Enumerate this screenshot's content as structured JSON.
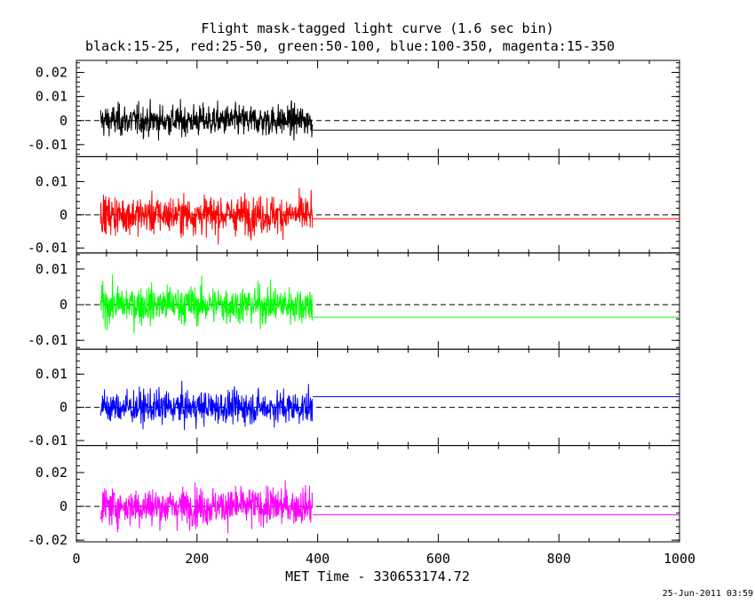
{
  "chart_data": {
    "type": "line",
    "title": "Flight mask-tagged light curve (1.6 sec bin)",
    "subtitle": "black:15-25, red:25-50, green:50-100, blue:100-350, magenta:15-350",
    "xlabel": "MET Time - 330653174.72",
    "xlim": [
      0,
      1000
    ],
    "xticks": [
      0,
      200,
      400,
      600,
      800,
      1000
    ],
    "data_x_range": [
      40,
      392
    ],
    "bin_seconds": 1.6,
    "panels": [
      {
        "name": "15-25",
        "color": "#000000",
        "ylim": [
          -0.015,
          0.025
        ],
        "yticks": [
          -0.01,
          0,
          0.01,
          0.02
        ],
        "ytick_labels": [
          "-0.01",
          "0",
          "0.01",
          "0.02"
        ],
        "noise_sigma": 0.0055,
        "mean": -0.004
      },
      {
        "name": "25-50",
        "color": "#ff0000",
        "ylim": [
          -0.0115,
          0.0175
        ],
        "yticks": [
          -0.01,
          0,
          0.01
        ],
        "ytick_labels": [
          "-0.01",
          "0",
          "0.01"
        ],
        "noise_sigma": 0.0048,
        "mean": -0.0012
      },
      {
        "name": "50-100",
        "color": "#00ff00",
        "ylim": [
          -0.0125,
          0.0145
        ],
        "yticks": [
          -0.01,
          0,
          0.01
        ],
        "ytick_labels": [
          "-0.01",
          "0",
          "0.01"
        ],
        "noise_sigma": 0.0045,
        "mean": -0.0035
      },
      {
        "name": "100-350",
        "color": "#0000ff",
        "ylim": [
          -0.0115,
          0.0175
        ],
        "yticks": [
          -0.01,
          0,
          0.01
        ],
        "ytick_labels": [
          "-0.01",
          "0",
          "0.01"
        ],
        "noise_sigma": 0.0042,
        "mean": 0.0032
      },
      {
        "name": "15-350",
        "color": "#ff00ff",
        "ylim": [
          -0.021,
          0.036
        ],
        "yticks": [
          -0.02,
          0,
          0.02
        ],
        "ytick_labels": [
          "-0.02",
          "0",
          "0.02"
        ],
        "noise_sigma": 0.0095,
        "mean": -0.005
      }
    ]
  },
  "footer": {
    "timestamp": "25-Jun-2011 03:59"
  }
}
